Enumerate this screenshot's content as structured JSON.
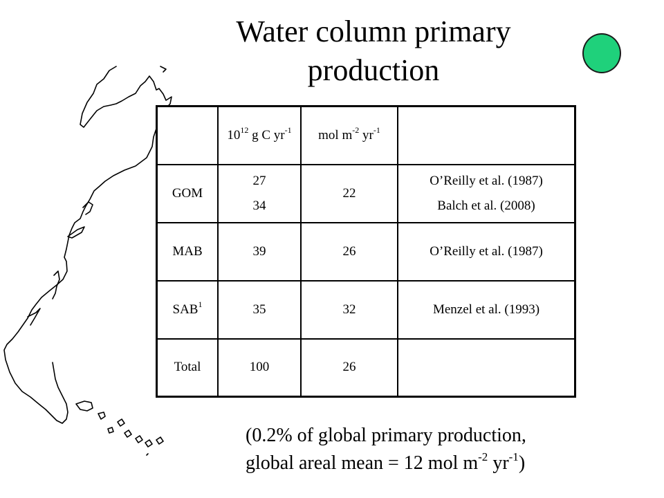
{
  "title": {
    "line1": "Water column primary",
    "line2": "production"
  },
  "table": {
    "header": {
      "col1_base": "10",
      "col1_exp": "12",
      "col1_rest": " g C yr",
      "col1_exp2": "-1",
      "col2_a": "mol m",
      "col2_exp1": "-2",
      "col2_b": " yr",
      "col2_exp2": "-1"
    },
    "rows": [
      {
        "region": "GOM",
        "region_sup": "",
        "value_a": "27",
        "value_b": "34",
        "areal": "22",
        "ref_a": "O’Reilly et al. (1987)",
        "ref_b": "Balch et al. (2008)"
      },
      {
        "region": "MAB",
        "region_sup": "",
        "value_a": "39",
        "value_b": "",
        "areal": "26",
        "ref_a": "O’Reilly et al. (1987)",
        "ref_b": ""
      },
      {
        "region": "SAB",
        "region_sup": "1",
        "value_a": "35",
        "value_b": "",
        "areal": "32",
        "ref_a": "Menzel et al. (1993)",
        "ref_b": ""
      },
      {
        "region": "Total",
        "region_sup": "",
        "value_a": "100",
        "value_b": "",
        "areal": "26",
        "ref_a": "",
        "ref_b": ""
      }
    ]
  },
  "note": {
    "line1": "(0.2% of global primary production,",
    "line2_a": "global areal mean = 12 mol m",
    "line2_exp1": "-2",
    "line2_b": " yr",
    "line2_exp2": "-1",
    "line2_c": ")"
  },
  "colors": {
    "dot_fill": "#1fd17b",
    "dot_stroke": "#1a1a1a"
  }
}
